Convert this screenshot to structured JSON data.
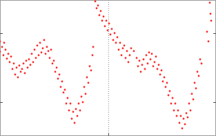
{
  "chart_data": {
    "type": "scatter",
    "color": "#ff2a2a",
    "marker": "dot",
    "grid": "x",
    "tick_labels": false,
    "xlim": [
      0,
      313
    ],
    "ylim": [
      0,
      197
    ],
    "xticks": [
      157
    ],
    "yticks": [
      49,
      149
    ],
    "x": [
      0,
      0,
      3,
      5,
      6,
      8,
      10,
      12,
      14,
      16,
      18,
      20,
      22,
      24,
      26,
      28,
      30,
      32,
      34,
      36,
      38,
      40,
      42,
      44,
      46,
      48,
      50,
      52,
      54,
      56,
      58,
      60,
      62,
      64,
      66,
      68,
      70,
      72,
      74,
      76,
      78,
      80,
      82,
      84,
      86,
      88,
      90,
      92,
      94,
      96,
      98,
      100,
      102,
      104,
      106,
      108,
      110,
      112,
      114,
      116,
      118,
      120,
      122,
      124,
      126,
      128,
      130,
      132,
      134,
      135,
      138,
      140,
      142,
      144,
      146,
      148,
      150,
      152,
      154,
      156,
      158,
      160,
      162,
      164,
      166,
      168,
      170,
      172,
      174,
      176,
      178,
      180,
      182,
      184,
      186,
      188,
      190,
      194,
      198,
      200,
      202,
      204,
      206,
      208,
      210,
      212,
      214,
      216,
      218,
      220,
      222,
      224,
      226,
      228,
      230,
      232,
      234,
      236,
      238,
      240,
      242,
      244,
      246,
      248,
      250,
      252,
      254,
      256,
      258,
      260,
      262,
      264,
      266,
      268,
      270,
      272,
      274,
      276,
      278,
      280,
      282,
      284,
      286,
      288,
      290,
      292,
      300,
      302,
      304,
      305,
      306
    ],
    "values": [
      137,
      122,
      129,
      117,
      135,
      125,
      112,
      119,
      107,
      115,
      97,
      105,
      89,
      99,
      85,
      102,
      93,
      97,
      105,
      91,
      109,
      99,
      111,
      103,
      119,
      107,
      125,
      113,
      131,
      117,
      135,
      121,
      127,
      139,
      119,
      129,
      123,
      113,
      125,
      105,
      109,
      93,
      99,
      83,
      89,
      71,
      79,
      63,
      67,
      47,
      55,
      37,
      47,
      25,
      35,
      19,
      39,
      29,
      47,
      37,
      57,
      49,
      71,
      61,
      85,
      77,
      101,
      95,
      117,
      129,
      195,
      185,
      189,
      175,
      181,
      167,
      173,
      159,
      167,
      153,
      163,
      147,
      155,
      139,
      149,
      135,
      143,
      125,
      135,
      117,
      127,
      131,
      113,
      123,
      107,
      117,
      127,
      123,
      113,
      101,
      109,
      93,
      103,
      111,
      97,
      117,
      105,
      121,
      111,
      119,
      101,
      107,
      115,
      97,
      103,
      89,
      95,
      79,
      85,
      71,
      77,
      59,
      65,
      47,
      55,
      37,
      47,
      29,
      37,
      19,
      29,
      11,
      25,
      17,
      33,
      27,
      47,
      37,
      61,
      53,
      77,
      69,
      93,
      87,
      111,
      105,
      151,
      137,
      193,
      177,
      167
    ]
  }
}
